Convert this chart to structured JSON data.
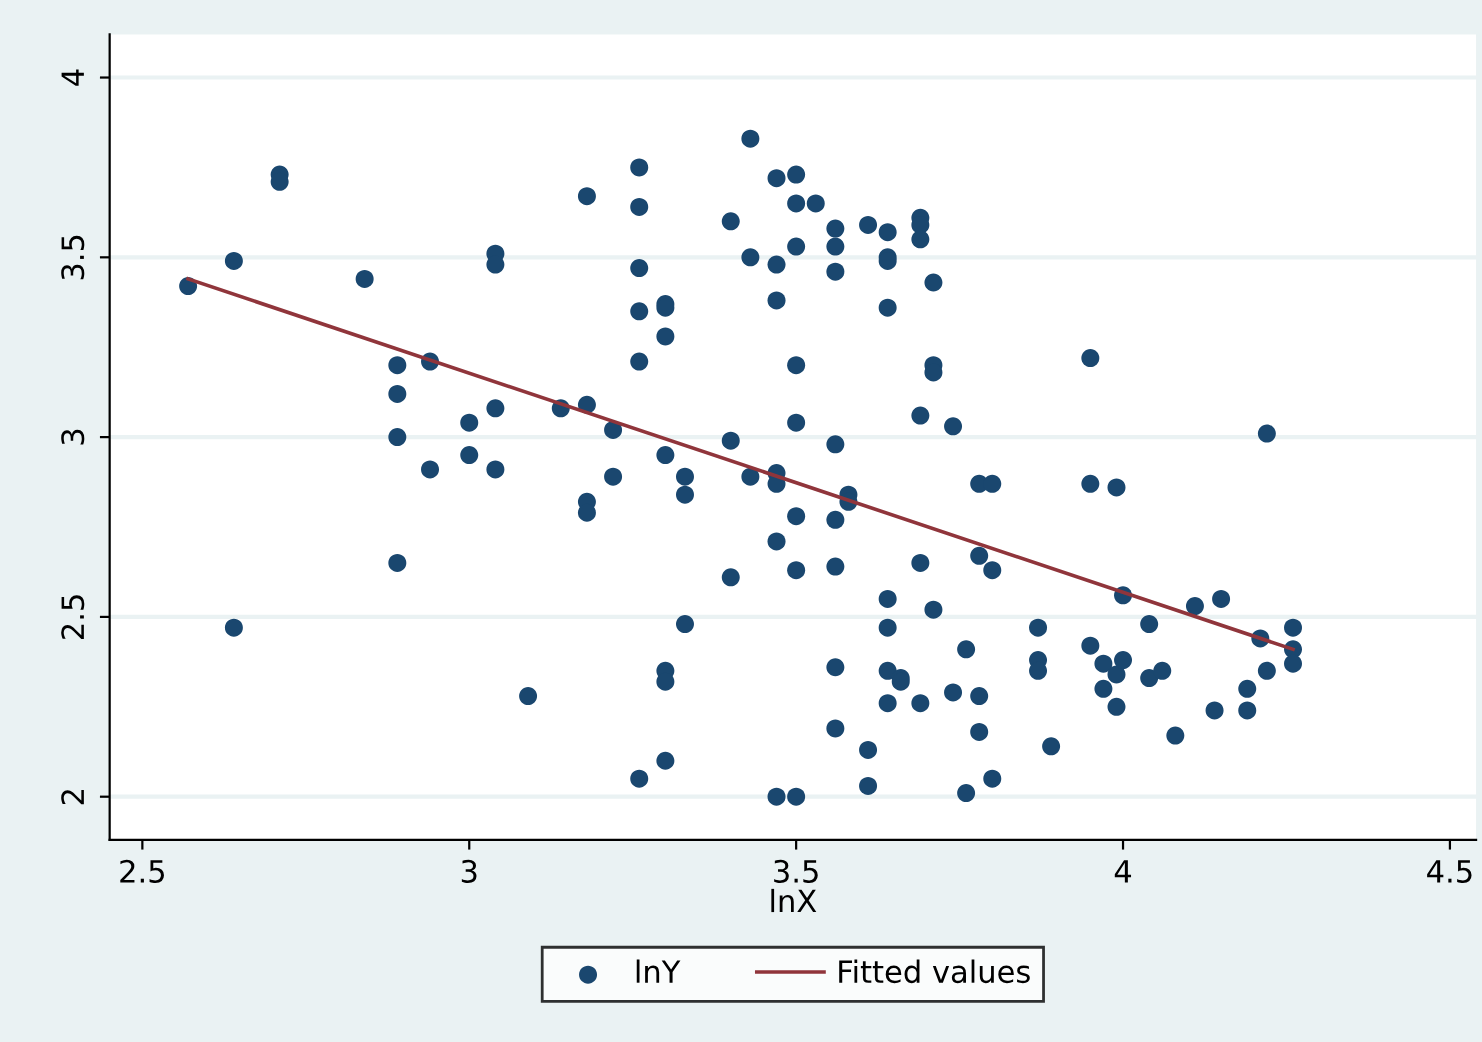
{
  "chart_data": {
    "type": "scatter",
    "xlabel": "lnX",
    "xlim": [
      2.45,
      4.54
    ],
    "ylim": [
      1.88,
      4.12
    ],
    "xticks": [
      2.5,
      3,
      3.5,
      4,
      4.5
    ],
    "yticks": [
      2,
      2.5,
      3,
      3.5,
      4
    ],
    "grid": "y",
    "legend": "bottom",
    "marker": "circle",
    "series": [
      {
        "name": "lnY",
        "type": "scatter",
        "color": "#1a476f",
        "x": [
          2.57,
          2.64,
          2.64,
          2.71,
          2.71,
          2.84,
          2.89,
          2.89,
          2.89,
          2.89,
          2.94,
          2.94,
          3.0,
          3.0,
          3.04,
          3.04,
          3.04,
          3.04,
          3.09,
          3.14,
          3.18,
          3.18,
          3.18,
          3.18,
          3.22,
          3.22,
          3.26,
          3.26,
          3.26,
          3.26,
          3.26,
          3.26,
          3.3,
          3.3,
          3.3,
          3.3,
          3.3,
          3.3,
          3.3,
          3.33,
          3.33,
          3.33,
          3.4,
          3.4,
          3.4,
          3.43,
          3.43,
          3.43,
          3.47,
          3.47,
          3.47,
          3.47,
          3.47,
          3.47,
          3.47,
          3.5,
          3.5,
          3.5,
          3.5,
          3.5,
          3.5,
          3.5,
          3.5,
          3.53,
          3.56,
          3.56,
          3.56,
          3.56,
          3.56,
          3.56,
          3.56,
          3.56,
          3.58,
          3.58,
          3.61,
          3.61,
          3.61,
          3.64,
          3.64,
          3.64,
          3.64,
          3.64,
          3.64,
          3.64,
          3.64,
          3.66,
          3.66,
          3.69,
          3.69,
          3.69,
          3.69,
          3.69,
          3.69,
          3.71,
          3.71,
          3.71,
          3.71,
          3.74,
          3.74,
          3.76,
          3.76,
          3.78,
          3.78,
          3.78,
          3.78,
          3.8,
          3.8,
          3.8,
          3.87,
          3.87,
          3.87,
          3.89,
          3.95,
          3.95,
          3.95,
          3.97,
          3.97,
          3.99,
          3.99,
          3.99,
          4.0,
          4.0,
          4.04,
          4.04,
          4.06,
          4.08,
          4.11,
          4.14,
          4.15,
          4.19,
          4.19,
          4.21,
          4.22,
          4.22,
          4.26,
          4.26,
          4.26
        ],
        "values": [
          3.42,
          3.49,
          2.47,
          3.73,
          3.71,
          3.44,
          3.2,
          3.12,
          3.0,
          2.65,
          3.21,
          2.91,
          3.04,
          2.95,
          3.51,
          3.48,
          3.08,
          2.91,
          2.28,
          3.08,
          3.67,
          3.09,
          2.82,
          2.79,
          3.02,
          2.89,
          3.75,
          3.64,
          3.47,
          3.35,
          3.21,
          2.05,
          3.37,
          3.36,
          3.28,
          2.95,
          2.35,
          2.32,
          2.1,
          2.89,
          2.84,
          2.48,
          3.6,
          2.99,
          2.61,
          3.83,
          3.5,
          2.89,
          3.72,
          3.48,
          3.38,
          2.9,
          2.87,
          2.71,
          2.0,
          3.73,
          3.65,
          3.53,
          3.2,
          3.04,
          2.78,
          2.63,
          2.0,
          3.65,
          3.58,
          3.53,
          3.46,
          2.98,
          2.77,
          2.64,
          2.36,
          2.19,
          2.84,
          2.82,
          3.59,
          2.13,
          2.03,
          3.57,
          3.5,
          3.49,
          3.36,
          2.55,
          2.47,
          2.35,
          2.26,
          2.33,
          2.32,
          3.61,
          3.59,
          3.55,
          3.06,
          2.65,
          2.26,
          3.43,
          3.2,
          3.18,
          2.52,
          3.03,
          2.29,
          2.41,
          2.01,
          2.87,
          2.67,
          2.28,
          2.18,
          2.87,
          2.63,
          2.05,
          2.47,
          2.38,
          2.35,
          2.14,
          3.22,
          2.87,
          2.42,
          2.37,
          2.3,
          2.86,
          2.34,
          2.25,
          2.56,
          2.38,
          2.48,
          2.33,
          2.35,
          2.17,
          2.53,
          2.24,
          2.55,
          2.3,
          2.24,
          2.44,
          3.01,
          2.35,
          2.47,
          2.41,
          2.37
        ]
      },
      {
        "name": "Fitted values",
        "type": "line",
        "color": "#90353b",
        "marker": "none",
        "x": [
          2.57,
          4.26
        ],
        "values": [
          3.44,
          2.41
        ]
      }
    ]
  }
}
